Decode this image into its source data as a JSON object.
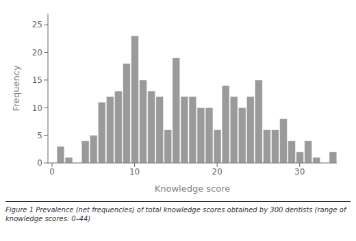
{
  "chart_data": {
    "type": "bar",
    "x": [
      0,
      1,
      2,
      3,
      4,
      5,
      6,
      7,
      8,
      9,
      10,
      11,
      12,
      13,
      14,
      15,
      16,
      17,
      18,
      19,
      20,
      21,
      22,
      23,
      24,
      25,
      26,
      27,
      28,
      29,
      30,
      31,
      32,
      33,
      34
    ],
    "values": [
      0,
      3,
      1,
      0,
      4,
      5,
      11,
      12,
      13,
      18,
      23,
      15,
      13,
      12,
      6,
      19,
      12,
      12,
      10,
      10,
      6,
      14,
      12,
      10,
      12,
      15,
      6,
      6,
      8,
      4,
      2,
      4,
      1,
      0,
      2
    ],
    "color": "#9a9a9a",
    "xlabel": "Knowledge score",
    "ylabel": "Frequency",
    "xlim": [
      -0.5,
      34.5
    ],
    "ylim": [
      0,
      27
    ],
    "xticks": [
      0,
      10,
      20,
      30
    ],
    "yticks": [
      0,
      5,
      10,
      15,
      20,
      25
    ],
    "grid": false,
    "annotations": [
      "Figure 1 Prevalence (net frequencies) of total knowledge scores obtained by 300 dentists (range of knowledge scores: 0–44)"
    ]
  }
}
